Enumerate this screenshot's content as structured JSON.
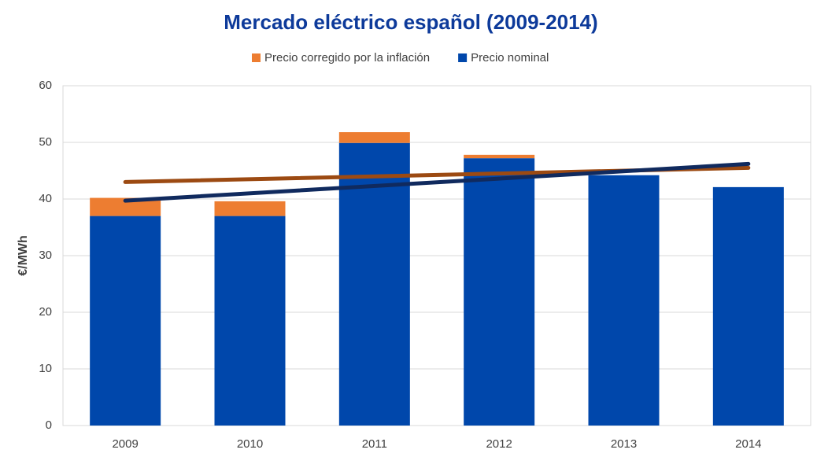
{
  "chart_data": {
    "type": "stacked_bar",
    "title": "Mercado eléctrico español (2009-2014)",
    "y_label": "€/MWh",
    "categories": [
      "2009",
      "2010",
      "2011",
      "2012",
      "2013",
      "2014"
    ],
    "series": [
      {
        "name": "Precio nominal",
        "color": "#0047ab",
        "values": [
          37.0,
          37.0,
          49.9,
          47.2,
          44.2,
          42.1
        ]
      },
      {
        "name": "Precio corregido por la inflación",
        "color": "#ed7d31",
        "values": [
          3.2,
          2.6,
          1.9,
          0.6,
          0,
          0
        ]
      }
    ],
    "trendlines": [
      {
        "color": "#9c4a12",
        "values": [
          43.0,
          45.5
        ]
      },
      {
        "color": "#102a5e",
        "values": [
          39.7,
          46.2
        ]
      }
    ],
    "ylim": [
      0,
      60
    ],
    "yticks": [
      0,
      10,
      20,
      30,
      40,
      50,
      60
    ],
    "grid": true
  }
}
